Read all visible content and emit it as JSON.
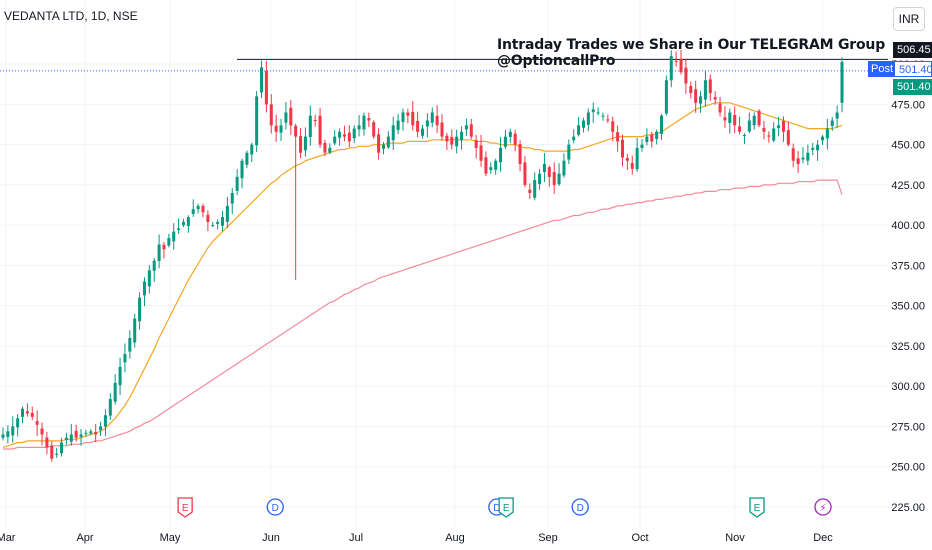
{
  "header": {
    "symbol_title": "VEDANTA LTD, 1D, NSE",
    "headline": "Intraday Trades we Share in Our TELEGRAM Group @OptioncallPro",
    "currency": "INR"
  },
  "price_tags": {
    "high": "506.45",
    "post_label": "Post",
    "post_value": "501.40",
    "last": "501.40"
  },
  "colors": {
    "up": "#089981",
    "down": "#f23645",
    "ma_fast": "#f5a623",
    "ma_slow": "#f28b9b",
    "event_dividend": "#2962ff",
    "event_earnings_red": "#f23645",
    "event_earnings_green": "#089981",
    "event_split": "#9c27b0"
  },
  "chart_data": {
    "type": "candlestick",
    "title": "",
    "ylim": [
      220,
      515
    ],
    "y_ticks": [
      "225.00",
      "250.00",
      "275.00",
      "300.00",
      "325.00",
      "350.00",
      "375.00",
      "400.00",
      "425.00",
      "450.00",
      "475.00",
      "500.00"
    ],
    "x_ticks": [
      "Mar",
      "Apr",
      "May",
      "Jun",
      "Jul",
      "Aug",
      "Sep",
      "Oct",
      "Nov",
      "Dec"
    ],
    "resistance_level": 503,
    "last_price": 501.4,
    "session_high": 506.45,
    "closes": [
      270,
      272,
      275,
      280,
      286,
      283,
      281,
      276,
      270,
      262,
      255,
      258,
      265,
      268,
      270,
      268,
      270,
      271,
      272,
      270,
      275,
      282,
      292,
      302,
      312,
      320,
      330,
      342,
      355,
      365,
      372,
      378,
      388,
      385,
      392,
      396,
      398,
      402,
      405,
      410,
      412,
      408,
      402,
      400,
      402,
      405,
      412,
      420,
      430,
      440,
      445,
      450,
      480,
      498,
      475,
      462,
      458,
      462,
      470,
      462,
      455,
      445,
      455,
      468,
      465,
      450,
      445,
      448,
      455,
      458,
      455,
      452,
      460,
      462,
      468,
      465,
      455,
      445,
      450,
      455,
      462,
      465,
      470,
      468,
      462,
      458,
      460,
      465,
      470,
      462,
      455,
      452,
      450,
      455,
      458,
      462,
      455,
      448,
      440,
      432,
      436,
      440,
      448,
      455,
      458,
      450,
      438,
      425,
      420,
      428,
      432,
      438,
      430,
      425,
      432,
      440,
      450,
      455,
      462,
      465,
      470,
      472,
      470,
      468,
      465,
      458,
      452,
      442,
      440,
      435,
      448,
      450,
      455,
      452,
      458,
      468,
      490,
      505,
      502,
      495,
      488,
      482,
      476,
      480,
      490,
      482,
      478,
      470,
      465,
      470,
      462,
      458,
      456,
      465,
      468,
      462,
      458,
      455,
      460,
      462,
      458,
      450,
      440,
      438,
      442,
      445,
      448,
      450,
      455,
      460,
      465,
      470,
      501.4
    ],
    "ma_fast": [
      262,
      263,
      264,
      265,
      265,
      266,
      266,
      266,
      266,
      266,
      266,
      266,
      266,
      267,
      267,
      267,
      268,
      269,
      270,
      271,
      272,
      274,
      277,
      280,
      284,
      288,
      293,
      299,
      305,
      311,
      317,
      323,
      330,
      336,
      342,
      348,
      354,
      360,
      366,
      371,
      376,
      381,
      386,
      390,
      393,
      396,
      399,
      402,
      405,
      408,
      411,
      414,
      417,
      420,
      423,
      426,
      428,
      431,
      433,
      435,
      437,
      438,
      440,
      441,
      442,
      443,
      444,
      445,
      446,
      447,
      447,
      448,
      448,
      449,
      449,
      449,
      450,
      450,
      450,
      451,
      451,
      451,
      451,
      452,
      452,
      452,
      452,
      452,
      453,
      453,
      453,
      453,
      453,
      453,
      453,
      453,
      453,
      452,
      452,
      452,
      451,
      451,
      450,
      450,
      450,
      450,
      449,
      448,
      448,
      447,
      447,
      446,
      446,
      446,
      446,
      446,
      446,
      447,
      447,
      448,
      449,
      450,
      451,
      452,
      453,
      454,
      455,
      455,
      455,
      455,
      455,
      455,
      456,
      456,
      457,
      458,
      460,
      462,
      464,
      466,
      468,
      470,
      472,
      473,
      474,
      475,
      476,
      476,
      476,
      476,
      475,
      474,
      473,
      472,
      471,
      470,
      469,
      468,
      467,
      466,
      465,
      464,
      463,
      462,
      461,
      460,
      460,
      460,
      460,
      460,
      460,
      461,
      462
    ],
    "ma_slow": [
      261,
      261,
      261,
      262,
      262,
      262,
      262,
      262,
      262,
      262,
      263,
      263,
      263,
      263,
      264,
      264,
      264,
      265,
      265,
      266,
      266,
      267,
      268,
      269,
      270,
      271,
      272,
      274,
      275,
      277,
      278,
      280,
      282,
      284,
      286,
      288,
      290,
      292,
      294,
      296,
      298,
      300,
      302,
      304,
      306,
      308,
      310,
      312,
      314,
      316,
      318,
      320,
      322,
      324,
      326,
      328,
      330,
      332,
      334,
      336,
      338,
      340,
      342,
      344,
      346,
      348,
      350,
      352,
      353,
      355,
      357,
      358,
      360,
      361,
      363,
      364,
      365,
      367,
      368,
      369,
      370,
      371,
      372,
      373,
      374,
      375,
      376,
      377,
      378,
      379,
      380,
      381,
      382,
      383,
      384,
      385,
      386,
      387,
      388,
      389,
      390,
      391,
      392,
      393,
      394,
      395,
      396,
      397,
      398,
      399,
      400,
      401,
      402,
      403,
      403,
      404,
      405,
      406,
      406,
      407,
      408,
      408,
      409,
      410,
      410,
      411,
      412,
      412,
      413,
      413,
      414,
      414,
      415,
      415,
      416,
      416,
      417,
      417,
      418,
      418,
      419,
      419,
      420,
      420,
      421,
      421,
      421,
      422,
      422,
      422,
      423,
      423,
      423,
      424,
      424,
      424,
      425,
      425,
      425,
      426,
      426,
      426,
      426,
      427,
      427,
      427,
      427,
      428,
      428,
      428,
      428,
      428,
      419
    ],
    "events": [
      {
        "type": "earnings",
        "label": "E",
        "color": "red",
        "month_index": 2.15
      },
      {
        "type": "dividend",
        "label": "D",
        "color": "blue",
        "month_index": 3.05
      },
      {
        "type": "dividend",
        "label": "D",
        "color": "blue",
        "month_index": 5.45
      },
      {
        "type": "earnings",
        "label": "E",
        "color": "green",
        "month_index": 5.55
      },
      {
        "type": "dividend",
        "label": "D",
        "color": "blue",
        "month_index": 6.35
      },
      {
        "type": "earnings",
        "label": "E",
        "color": "green",
        "month_index": 8.25
      },
      {
        "type": "split",
        "label": "⚡",
        "color": "purple",
        "month_index": 9.25
      }
    ]
  }
}
